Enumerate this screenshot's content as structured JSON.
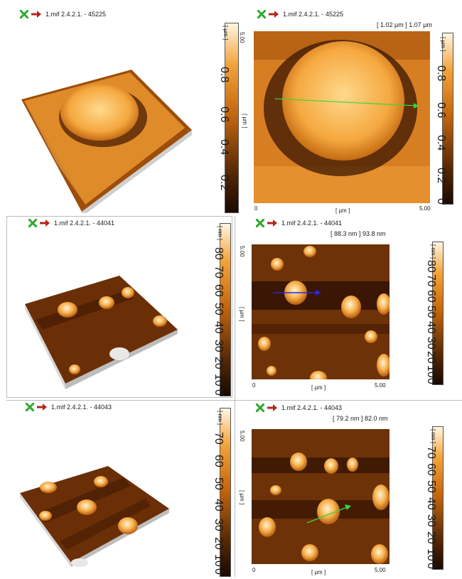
{
  "panels": [
    {
      "header": "1.mif 2.4.2.1. - 45225",
      "colorbar_unit": "[ µm ]",
      "colorbar_ticks": [
        "0.8",
        "0.6",
        "0.4",
        "0.2"
      ],
      "map": {
        "header": "1.mif 2.4.2.1. - 45225",
        "measurement": "[ 1.02 µm ] 1.07 µm",
        "y_axis_label": "[ µm ]",
        "y_max": "5.00",
        "x_axis_label": "[ µm ]",
        "x_min": "0",
        "x_max": "5.00",
        "colorbar_unit": "[ µm ]",
        "colorbar_ticks": [
          "0.8",
          "0.6",
          "0.4",
          "0.2",
          "0"
        ]
      }
    },
    {
      "header": "1.mif 2.4.2.1. - 44041",
      "colorbar_unit": "[ nm ]",
      "colorbar_ticks": [
        "80",
        "70",
        "60",
        "50",
        "40",
        "30",
        "20",
        "10",
        "0"
      ],
      "map": {
        "header": "1.mif 2.4.2.1. - 44041",
        "measurement": "[ 88.3 nm ] 93.8 nm",
        "y_axis_label": "[ µm ]",
        "y_max": "5.00",
        "x_axis_label": "[ µm ]",
        "x_min": "0",
        "x_max": "5.00",
        "colorbar_unit": "[ nm ]",
        "colorbar_ticks": [
          "80",
          "70",
          "60",
          "50",
          "40",
          "30",
          "20",
          "10",
          "0"
        ]
      }
    },
    {
      "header": "1.mif 2.4.2.1. - 44043",
      "colorbar_unit": "[ nm ]",
      "colorbar_ticks": [
        "70",
        "60",
        "50",
        "40",
        "30",
        "20",
        "10",
        "0"
      ],
      "map": {
        "header": "1.mif 2.4.2.1. - 44043",
        "measurement": "[ 79.2 nm ] 82.0 nm",
        "y_axis_label": "[ µm ]",
        "y_max": "5.00",
        "x_axis_label": "[ µm ]",
        "x_min": "0",
        "x_max": "5.00",
        "colorbar_unit": "[ nm ]",
        "colorbar_ticks": [
          "70",
          "60",
          "50",
          "40",
          "30",
          "20",
          "10",
          "0"
        ]
      }
    }
  ],
  "icons": {
    "close": "green-x-icon",
    "arrow": "red-arrow-icon"
  },
  "colors": {
    "accent_green": "#2faa2f",
    "arrow_red": "#b3261e",
    "line_green": "#39d639",
    "line_blue": "#2a2ad6"
  }
}
